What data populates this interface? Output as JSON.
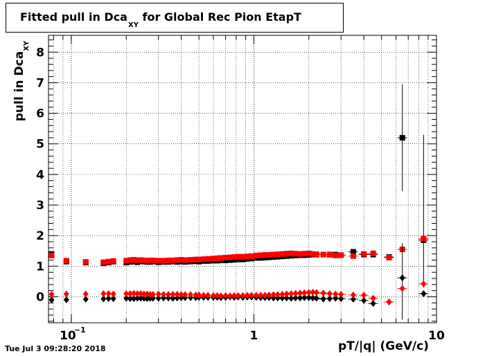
{
  "title": {
    "main": "Fitted pull in Dca",
    "sub": "XY",
    "rest": " for Global Rec Pion EtapT"
  },
  "timestamp": "Tue Jul  3 09:28:20 2018",
  "chart_data": {
    "type": "scatter",
    "xlabel": "pT/|q| (GeV/c)",
    "ylabel_main": "pull in Dca",
    "ylabel_sub": "XY",
    "xscale": "log",
    "xlim": [
      0.075,
      10
    ],
    "ylim": [
      -0.85,
      8.55
    ],
    "grid": true,
    "x_tick_labels": [
      {
        "value": 0.1,
        "base": "10",
        "exp": "−1"
      },
      {
        "value": 1,
        "base": "1",
        "exp": ""
      },
      {
        "value": 10,
        "base": "10",
        "exp": ""
      }
    ],
    "y_ticks": [
      0,
      1,
      2,
      3,
      4,
      5,
      6,
      7,
      8
    ],
    "series": [
      {
        "marker": "square",
        "color": "#000000",
        "x": [
          0.078,
          0.094,
          0.12,
          0.15,
          0.16,
          0.17,
          0.2,
          0.21,
          0.22,
          0.23,
          0.24,
          0.25,
          0.26,
          0.27,
          0.28,
          0.3,
          0.32,
          0.34,
          0.36,
          0.38,
          0.4,
          0.42,
          0.45,
          0.48,
          0.5,
          0.53,
          0.56,
          0.6,
          0.63,
          0.66,
          0.7,
          0.74,
          0.78,
          0.82,
          0.87,
          0.92,
          0.97,
          1.03,
          1.09,
          1.15,
          1.21,
          1.28,
          1.35,
          1.43,
          1.51,
          1.6,
          1.69,
          1.79,
          1.89,
          2.0,
          2.1,
          2.2,
          2.4,
          2.6,
          2.8,
          3.0,
          3.5,
          4.0,
          4.5,
          5.5,
          6.5,
          8.5
        ],
        "y": [
          1.4,
          1.15,
          1.12,
          1.1,
          1.12,
          1.15,
          1.12,
          1.14,
          1.15,
          1.13,
          1.16,
          1.15,
          1.14,
          1.14,
          1.15,
          1.13,
          1.14,
          1.14,
          1.15,
          1.14,
          1.15,
          1.14,
          1.15,
          1.16,
          1.15,
          1.17,
          1.17,
          1.18,
          1.18,
          1.19,
          1.19,
          1.2,
          1.21,
          1.22,
          1.22,
          1.24,
          1.25,
          1.27,
          1.27,
          1.28,
          1.29,
          1.3,
          1.31,
          1.32,
          1.33,
          1.34,
          1.35,
          1.36,
          1.36,
          1.37,
          1.38,
          1.38,
          1.38,
          1.38,
          1.38,
          1.36,
          1.47,
          1.38,
          1.38,
          1.3,
          5.2,
          1.85
        ],
        "yerr_large": [
          {
            "x": 6.5,
            "lo": 3.45,
            "hi": 6.95
          },
          {
            "x": 8.5,
            "lo": 0.3,
            "hi": 5.3
          }
        ]
      },
      {
        "marker": "square",
        "color": "#ff0000",
        "x": [
          0.078,
          0.094,
          0.12,
          0.15,
          0.16,
          0.17,
          0.2,
          0.21,
          0.22,
          0.23,
          0.24,
          0.25,
          0.26,
          0.27,
          0.28,
          0.3,
          0.32,
          0.34,
          0.36,
          0.38,
          0.4,
          0.42,
          0.45,
          0.48,
          0.5,
          0.53,
          0.56,
          0.6,
          0.63,
          0.66,
          0.7,
          0.74,
          0.78,
          0.82,
          0.87,
          0.92,
          0.97,
          1.03,
          1.09,
          1.15,
          1.21,
          1.28,
          1.35,
          1.43,
          1.51,
          1.6,
          1.69,
          1.79,
          1.89,
          2.0,
          2.1,
          2.2,
          2.4,
          2.6,
          2.8,
          3.0,
          3.5,
          4.0,
          4.5,
          5.5,
          6.5,
          8.5
        ],
        "y": [
          1.35,
          1.18,
          1.14,
          1.13,
          1.15,
          1.17,
          1.18,
          1.2,
          1.21,
          1.2,
          1.2,
          1.19,
          1.18,
          1.19,
          1.19,
          1.18,
          1.18,
          1.19,
          1.19,
          1.2,
          1.21,
          1.2,
          1.21,
          1.22,
          1.22,
          1.23,
          1.24,
          1.25,
          1.26,
          1.27,
          1.28,
          1.29,
          1.3,
          1.31,
          1.31,
          1.32,
          1.33,
          1.35,
          1.36,
          1.37,
          1.37,
          1.38,
          1.39,
          1.4,
          1.41,
          1.42,
          1.41,
          1.4,
          1.41,
          1.42,
          1.4,
          1.39,
          1.38,
          1.37,
          1.35,
          1.36,
          1.33,
          1.4,
          1.42,
          1.28,
          1.55,
          1.9
        ]
      },
      {
        "marker": "diamond",
        "color": "#000000",
        "x": [
          0.078,
          0.094,
          0.12,
          0.15,
          0.16,
          0.17,
          0.2,
          0.21,
          0.22,
          0.23,
          0.24,
          0.25,
          0.26,
          0.27,
          0.28,
          0.3,
          0.32,
          0.34,
          0.36,
          0.38,
          0.4,
          0.42,
          0.45,
          0.48,
          0.5,
          0.53,
          0.56,
          0.6,
          0.63,
          0.66,
          0.7,
          0.74,
          0.78,
          0.82,
          0.87,
          0.92,
          0.97,
          1.03,
          1.09,
          1.15,
          1.21,
          1.28,
          1.35,
          1.43,
          1.51,
          1.6,
          1.69,
          1.79,
          1.89,
          2.0,
          2.1,
          2.2,
          2.4,
          2.6,
          2.8,
          3.0,
          3.5,
          4.0,
          4.5,
          5.5,
          6.5,
          8.5
        ],
        "y": [
          -0.1,
          -0.1,
          -0.08,
          -0.07,
          -0.06,
          -0.06,
          -0.05,
          -0.06,
          -0.06,
          -0.05,
          -0.05,
          -0.05,
          -0.06,
          -0.05,
          -0.05,
          -0.05,
          -0.04,
          -0.04,
          -0.05,
          -0.04,
          -0.03,
          -0.03,
          -0.03,
          -0.03,
          -0.02,
          -0.02,
          -0.02,
          -0.02,
          -0.02,
          -0.03,
          -0.02,
          -0.01,
          -0.02,
          -0.01,
          -0.02,
          -0.01,
          -0.01,
          -0.02,
          -0.03,
          -0.03,
          -0.03,
          -0.04,
          -0.04,
          -0.04,
          -0.04,
          -0.05,
          -0.04,
          -0.04,
          -0.03,
          -0.03,
          -0.04,
          -0.05,
          -0.07,
          -0.06,
          -0.05,
          -0.06,
          -0.08,
          -0.12,
          -0.22,
          -0.17,
          0.62,
          0.1
        ],
        "yerr_large": [
          {
            "x": 6.5,
            "lo": -0.75,
            "hi": 1.75
          }
        ]
      },
      {
        "marker": "diamond",
        "color": "#ff0000",
        "x": [
          0.078,
          0.094,
          0.12,
          0.15,
          0.16,
          0.17,
          0.2,
          0.21,
          0.22,
          0.23,
          0.24,
          0.25,
          0.26,
          0.27,
          0.28,
          0.3,
          0.32,
          0.34,
          0.36,
          0.38,
          0.4,
          0.42,
          0.45,
          0.48,
          0.5,
          0.53,
          0.56,
          0.6,
          0.63,
          0.66,
          0.7,
          0.74,
          0.78,
          0.82,
          0.87,
          0.92,
          0.97,
          1.03,
          1.09,
          1.15,
          1.21,
          1.28,
          1.35,
          1.43,
          1.51,
          1.6,
          1.69,
          1.79,
          1.89,
          2.0,
          2.1,
          2.2,
          2.4,
          2.6,
          2.8,
          3.0,
          3.5,
          4.0,
          4.5,
          5.5,
          6.5,
          8.5
        ],
        "y": [
          0.08,
          0.09,
          0.09,
          0.1,
          0.1,
          0.09,
          0.1,
          0.1,
          0.11,
          0.1,
          0.1,
          0.09,
          0.09,
          0.08,
          0.08,
          0.09,
          0.08,
          0.08,
          0.08,
          0.08,
          0.07,
          0.07,
          0.07,
          0.06,
          0.06,
          0.05,
          0.05,
          0.04,
          0.04,
          0.03,
          0.04,
          0.03,
          0.04,
          0.04,
          0.04,
          0.05,
          0.05,
          0.05,
          0.05,
          0.05,
          0.06,
          0.07,
          0.07,
          0.08,
          0.09,
          0.1,
          0.11,
          0.12,
          0.13,
          0.14,
          0.15,
          0.14,
          0.12,
          0.1,
          0.09,
          0.08,
          0.06,
          0.05,
          -0.05,
          -0.17,
          0.27,
          0.42
        ]
      }
    ]
  }
}
